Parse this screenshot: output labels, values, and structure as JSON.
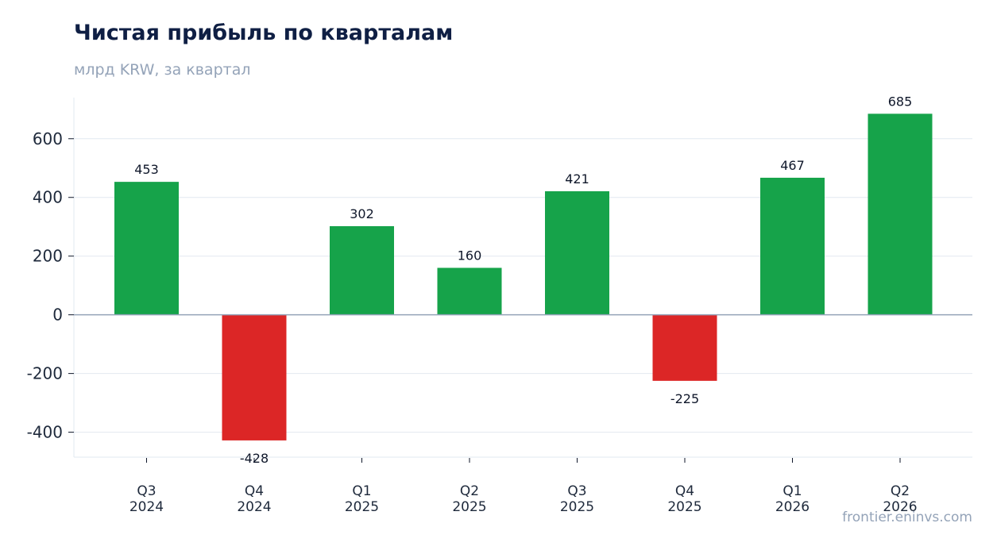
{
  "chart_data": {
    "type": "bar",
    "title": "Чистая прибыль по кварталам",
    "subtitle": "млрд KRW, за квартал",
    "source": "frontier.eninvs.com",
    "categories": [
      [
        "Q3",
        "2024"
      ],
      [
        "Q4",
        "2024"
      ],
      [
        "Q1",
        "2025"
      ],
      [
        "Q2",
        "2025"
      ],
      [
        "Q3",
        "2025"
      ],
      [
        "Q4",
        "2025"
      ],
      [
        "Q1",
        "2026"
      ],
      [
        "Q2",
        "2026"
      ]
    ],
    "values": [
      453,
      -428,
      302,
      160,
      421,
      -225,
      467,
      685
    ],
    "ylim": [
      -485,
      740
    ],
    "yticks": [
      600,
      400,
      200,
      0,
      -200,
      -400
    ],
    "ytick_labels": [
      "600",
      "400",
      "200",
      "0",
      "-200",
      "-400"
    ],
    "grid": true,
    "colors": {
      "positive": "#16a34a",
      "negative": "#dc2626",
      "grid": "#e2e8f0",
      "zero_line": "#94a3b8",
      "label": "#0f172a"
    }
  }
}
